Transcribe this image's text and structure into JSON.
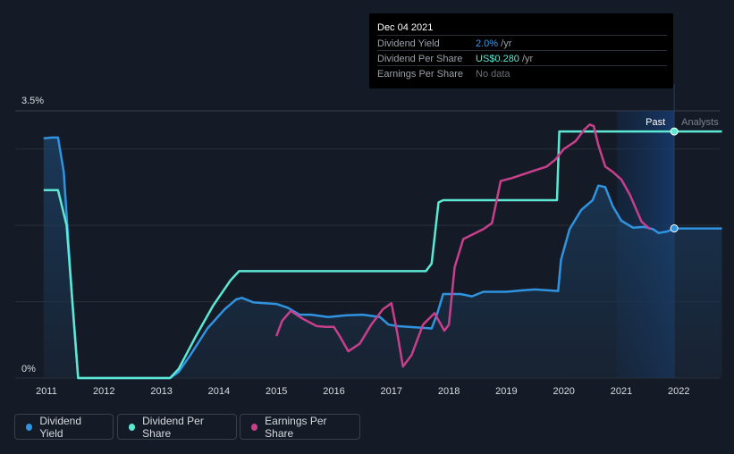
{
  "tooltip": {
    "date": "Dec 04 2021",
    "rows": [
      {
        "label": "Dividend Yield",
        "value": "2.0%",
        "unit": " /yr",
        "color": "#3d9be9"
      },
      {
        "label": "Dividend Per Share",
        "value": "US$0.280",
        "unit": " /yr",
        "color": "#5ce8d3"
      },
      {
        "label": "Earnings Per Share",
        "value": "No data",
        "unit": "",
        "color": "#6b7079"
      }
    ]
  },
  "legend": [
    {
      "label": "Dividend Yield",
      "color": "#2f93e0"
    },
    {
      "label": "Dividend Per Share",
      "color": "#5ce8d3"
    },
    {
      "label": "Earnings Per Share",
      "color": "#c83f8c"
    }
  ],
  "chart_data": {
    "type": "line",
    "y_top_label": "3.5%",
    "y_bottom_label": "0%",
    "past_label": "Past",
    "analysts_label": "Analysts",
    "xlim": [
      2010.95,
      2022.75
    ],
    "ylim": [
      0,
      3.5
    ],
    "forecast_start": 2020.92,
    "cursor_x": 2021.92,
    "x_ticks": [
      "2011",
      "2012",
      "2013",
      "2014",
      "2015",
      "2016",
      "2017",
      "2018",
      "2019",
      "2020",
      "2021",
      "2022"
    ],
    "series": [
      {
        "name": "Dividend Yield",
        "color": "#2f93e0",
        "fill": true,
        "points": [
          [
            2010.95,
            3.14
          ],
          [
            2011.1,
            3.15
          ],
          [
            2011.2,
            3.15
          ],
          [
            2011.3,
            2.7
          ],
          [
            2011.45,
            1.0
          ],
          [
            2011.55,
            0.0
          ],
          [
            2013.15,
            0.0
          ],
          [
            2013.3,
            0.08
          ],
          [
            2013.5,
            0.3
          ],
          [
            2013.8,
            0.65
          ],
          [
            2014.1,
            0.9
          ],
          [
            2014.3,
            1.03
          ],
          [
            2014.4,
            1.05
          ],
          [
            2014.6,
            0.99
          ],
          [
            2014.8,
            0.98
          ],
          [
            2015.0,
            0.97
          ],
          [
            2015.2,
            0.92
          ],
          [
            2015.4,
            0.83
          ],
          [
            2015.6,
            0.83
          ],
          [
            2015.9,
            0.8
          ],
          [
            2016.2,
            0.82
          ],
          [
            2016.5,
            0.83
          ],
          [
            2016.8,
            0.8
          ],
          [
            2016.95,
            0.7
          ],
          [
            2017.1,
            0.68
          ],
          [
            2017.5,
            0.66
          ],
          [
            2017.7,
            0.65
          ],
          [
            2017.8,
            0.85
          ],
          [
            2017.9,
            1.1
          ],
          [
            2018.2,
            1.1
          ],
          [
            2018.4,
            1.07
          ],
          [
            2018.6,
            1.13
          ],
          [
            2019.0,
            1.13
          ],
          [
            2019.3,
            1.15
          ],
          [
            2019.5,
            1.16
          ],
          [
            2019.9,
            1.14
          ],
          [
            2019.95,
            1.55
          ],
          [
            2020.1,
            1.95
          ],
          [
            2020.3,
            2.2
          ],
          [
            2020.5,
            2.33
          ],
          [
            2020.6,
            2.52
          ],
          [
            2020.72,
            2.5
          ],
          [
            2020.85,
            2.25
          ],
          [
            2021.0,
            2.06
          ],
          [
            2021.2,
            1.97
          ],
          [
            2021.4,
            1.98
          ],
          [
            2021.55,
            1.95
          ],
          [
            2021.65,
            1.9
          ],
          [
            2021.8,
            1.92
          ],
          [
            2021.92,
            1.96
          ],
          [
            2022.75,
            1.96
          ]
        ]
      },
      {
        "name": "Dividend Per Share",
        "color": "#5ce8d3",
        "fill": false,
        "points": [
          [
            2010.95,
            2.46
          ],
          [
            2011.2,
            2.46
          ],
          [
            2011.35,
            2.0
          ],
          [
            2011.55,
            0.0
          ],
          [
            2013.15,
            0.0
          ],
          [
            2013.3,
            0.12
          ],
          [
            2013.6,
            0.55
          ],
          [
            2013.9,
            0.95
          ],
          [
            2014.2,
            1.28
          ],
          [
            2014.35,
            1.4
          ],
          [
            2017.6,
            1.4
          ],
          [
            2017.7,
            1.5
          ],
          [
            2017.82,
            2.3
          ],
          [
            2017.9,
            2.33
          ],
          [
            2019.88,
            2.33
          ],
          [
            2019.92,
            3.23
          ],
          [
            2022.75,
            3.23
          ]
        ]
      },
      {
        "name": "Earnings Per Share",
        "color": "#c83f8c",
        "fill": false,
        "points": [
          [
            2015.0,
            0.55
          ],
          [
            2015.1,
            0.75
          ],
          [
            2015.25,
            0.88
          ],
          [
            2015.45,
            0.78
          ],
          [
            2015.7,
            0.68
          ],
          [
            2015.85,
            0.67
          ],
          [
            2016.0,
            0.67
          ],
          [
            2016.1,
            0.55
          ],
          [
            2016.25,
            0.35
          ],
          [
            2016.45,
            0.45
          ],
          [
            2016.65,
            0.7
          ],
          [
            2016.85,
            0.9
          ],
          [
            2017.0,
            0.98
          ],
          [
            2017.1,
            0.6
          ],
          [
            2017.2,
            0.15
          ],
          [
            2017.35,
            0.3
          ],
          [
            2017.55,
            0.7
          ],
          [
            2017.75,
            0.85
          ],
          [
            2017.92,
            0.62
          ],
          [
            2018.0,
            0.7
          ],
          [
            2018.1,
            1.45
          ],
          [
            2018.25,
            1.82
          ],
          [
            2018.6,
            1.95
          ],
          [
            2018.75,
            2.03
          ],
          [
            2018.9,
            2.58
          ],
          [
            2019.1,
            2.62
          ],
          [
            2019.5,
            2.72
          ],
          [
            2019.7,
            2.77
          ],
          [
            2019.85,
            2.86
          ],
          [
            2020.0,
            3.0
          ],
          [
            2020.2,
            3.1
          ],
          [
            2020.35,
            3.25
          ],
          [
            2020.45,
            3.32
          ],
          [
            2020.52,
            3.3
          ],
          [
            2020.6,
            3.05
          ],
          [
            2020.72,
            2.77
          ],
          [
            2020.85,
            2.7
          ],
          [
            2021.0,
            2.6
          ],
          [
            2021.15,
            2.4
          ],
          [
            2021.35,
            2.05
          ],
          [
            2021.5,
            1.95
          ]
        ]
      }
    ]
  }
}
